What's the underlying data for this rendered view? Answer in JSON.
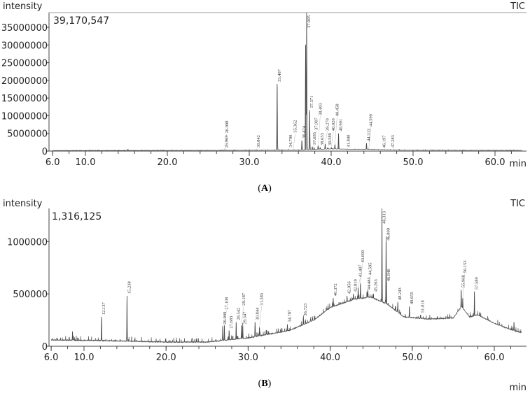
{
  "chart_data": [
    {
      "id": "A",
      "type": "line",
      "caption": "A",
      "ylabel": "intensity",
      "xlabel": "min",
      "legend": "TIC",
      "legend_position": "top-right",
      "max_intensity_label": "39,170,547",
      "xlim": [
        6.0,
        63.3
      ],
      "ylim": [
        0,
        39170547
      ],
      "x_ticks": [
        "6.0",
        "10.0",
        "20.0",
        "30.0",
        "40.0",
        "50.0",
        "60.0"
      ],
      "x_tick_values": [
        6,
        10,
        20,
        30,
        40,
        50,
        60
      ],
      "y_ticks": [
        "0",
        "5000000",
        "10000000",
        "15000000",
        "20000000",
        "25000000",
        "30000000",
        "35000000"
      ],
      "y_tick_values": [
        0,
        5000000,
        10000000,
        15000000,
        20000000,
        25000000,
        30000000,
        35000000
      ],
      "grid": false,
      "baseline": [
        [
          6,
          150000
        ],
        [
          25,
          200000
        ],
        [
          36,
          300000
        ],
        [
          40,
          600000
        ],
        [
          45,
          450000
        ],
        [
          50,
          250000
        ],
        [
          63.3,
          200000
        ]
      ],
      "peaks": [
        {
          "rt": 15.2,
          "intensity": 500000,
          "label": ""
        },
        {
          "rt": 26.969,
          "intensity": 350000,
          "label": "26.969"
        },
        {
          "rt": 26.998,
          "intensity": 300000,
          "label": "26.998"
        },
        {
          "rt": 30.842,
          "intensity": 400000,
          "label": "30.842"
        },
        {
          "rt": 33.407,
          "intensity": 19000000,
          "label": "33.407"
        },
        {
          "rt": 34.79,
          "intensity": 500000,
          "label": "34.790"
        },
        {
          "rt": 35.362,
          "intensity": 400000,
          "label": "35.362"
        },
        {
          "rt": 36.424,
          "intensity": 3000000,
          "label": "36.424"
        },
        {
          "rt": 36.88,
          "intensity": 30000000,
          "label": ""
        },
        {
          "rt": 37.005,
          "intensity": 39170547,
          "label": "37.005"
        },
        {
          "rt": 37.371,
          "intensity": 11600000,
          "label": "37.371"
        },
        {
          "rt": 37.695,
          "intensity": 1200000,
          "label": "37.695"
        },
        {
          "rt": 37.907,
          "intensity": 1000000,
          "label": "37.907"
        },
        {
          "rt": 38.403,
          "intensity": 1500000,
          "label": "38.403"
        },
        {
          "rt": 38.653,
          "intensity": 1000000,
          "label": "38.653"
        },
        {
          "rt": 39.27,
          "intensity": 2000000,
          "label": "39.270"
        },
        {
          "rt": 39.589,
          "intensity": 1000000,
          "label": "39.589"
        },
        {
          "rt": 40.02,
          "intensity": 1000000,
          "label": "40.020"
        },
        {
          "rt": 40.458,
          "intensity": 1800000,
          "label": "40.458"
        },
        {
          "rt": 40.901,
          "intensity": 5000000,
          "label": "40.901"
        },
        {
          "rt": 41.84,
          "intensity": 500000,
          "label": "41.840"
        },
        {
          "rt": 44.313,
          "intensity": 2200000,
          "label": "44.313"
        },
        {
          "rt": 44.59,
          "intensity": 600000,
          "label": "44.590"
        },
        {
          "rt": 46.197,
          "intensity": 350000,
          "label": "46.197"
        },
        {
          "rt": 47.283,
          "intensity": 400000,
          "label": "47.283"
        }
      ]
    },
    {
      "id": "B",
      "type": "line",
      "caption": "B",
      "ylabel": "intensity",
      "xlabel": "min",
      "legend": "TIC",
      "legend_position": "top-right",
      "max_intensity_label": "1,316,125",
      "xlim": [
        6.0,
        63.3
      ],
      "ylim": [
        0,
        1316125
      ],
      "x_ticks": [
        "6.0",
        "10.0",
        "20.0",
        "30.0",
        "40.0",
        "50.0",
        "60.0"
      ],
      "x_tick_values": [
        6,
        10,
        20,
        30,
        40,
        50,
        60
      ],
      "y_ticks": [
        "0",
        "500000",
        "1000000"
      ],
      "y_tick_values": [
        0,
        500000,
        1000000
      ],
      "grid": false,
      "baseline": [
        [
          6,
          60000
        ],
        [
          12,
          55000
        ],
        [
          20,
          40000
        ],
        [
          25,
          40000
        ],
        [
          30,
          80000
        ],
        [
          35,
          150000
        ],
        [
          38,
          250000
        ],
        [
          40,
          370000
        ],
        [
          43,
          450000
        ],
        [
          45,
          470000
        ],
        [
          47,
          400000
        ],
        [
          49,
          280000
        ],
        [
          52,
          260000
        ],
        [
          55,
          270000
        ],
        [
          56,
          380000
        ],
        [
          57,
          280000
        ],
        [
          58,
          300000
        ],
        [
          60,
          220000
        ],
        [
          62,
          160000
        ],
        [
          63.3,
          130000
        ]
      ],
      "peaks": [
        {
          "rt": 8.6,
          "intensity": 140000,
          "label": ""
        },
        {
          "rt": 12.137,
          "intensity": 280000,
          "label": "12.137"
        },
        {
          "rt": 15.238,
          "intensity": 480000,
          "label": "15.238"
        },
        {
          "rt": 26.909,
          "intensity": 190000,
          "label": "26.909"
        },
        {
          "rt": 27.108,
          "intensity": 200000,
          "label": "27.108"
        },
        {
          "rt": 27.683,
          "intensity": 150000,
          "label": "27.683"
        },
        {
          "rt": 28.542,
          "intensity": 230000,
          "label": "28.542"
        },
        {
          "rt": 29.187,
          "intensity": 200000,
          "label": "29.187"
        },
        {
          "rt": 29.347,
          "intensity": 190000,
          "label": "29.347"
        },
        {
          "rt": 30.844,
          "intensity": 230000,
          "label": "30.844"
        },
        {
          "rt": 31.385,
          "intensity": 180000,
          "label": "31.385"
        },
        {
          "rt": 34.787,
          "intensity": 210000,
          "label": "34.787"
        },
        {
          "rt": 36.723,
          "intensity": 270000,
          "label": "36.723"
        },
        {
          "rt": 40.372,
          "intensity": 460000,
          "label": "40.372"
        },
        {
          "rt": 42.056,
          "intensity": 480000,
          "label": "42.056"
        },
        {
          "rt": 42.819,
          "intensity": 500000,
          "label": "42.819"
        },
        {
          "rt": 43.69,
          "intensity": 600000,
          "label": "43.690"
        },
        {
          "rt": 43.407,
          "intensity": 560000,
          "label": "43.407"
        },
        {
          "rt": 44.485,
          "intensity": 520000,
          "label": "44.485"
        },
        {
          "rt": 44.595,
          "intensity": 540000,
          "label": "44.595"
        },
        {
          "rt": 45.263,
          "intensity": 500000,
          "label": "45.263"
        },
        {
          "rt": 46.313,
          "intensity": 1316125,
          "label": "46.313"
        },
        {
          "rt": 46.809,
          "intensity": 990000,
          "label": "46.809"
        },
        {
          "rt": 46.846,
          "intensity": 600000,
          "label": "46.846"
        },
        {
          "rt": 48.243,
          "intensity": 420000,
          "label": "48.243"
        },
        {
          "rt": 49.655,
          "intensity": 380000,
          "label": "49.655"
        },
        {
          "rt": 51.018,
          "intensity": 300000,
          "label": "51.018"
        },
        {
          "rt": 55.968,
          "intensity": 540000,
          "label": "55.968"
        },
        {
          "rt": 56.153,
          "intensity": 460000,
          "label": "56.153"
        },
        {
          "rt": 57.58,
          "intensity": 520000,
          "label": "57.580"
        },
        {
          "rt": 62.4,
          "intensity": 230000,
          "label": ""
        }
      ]
    }
  ]
}
